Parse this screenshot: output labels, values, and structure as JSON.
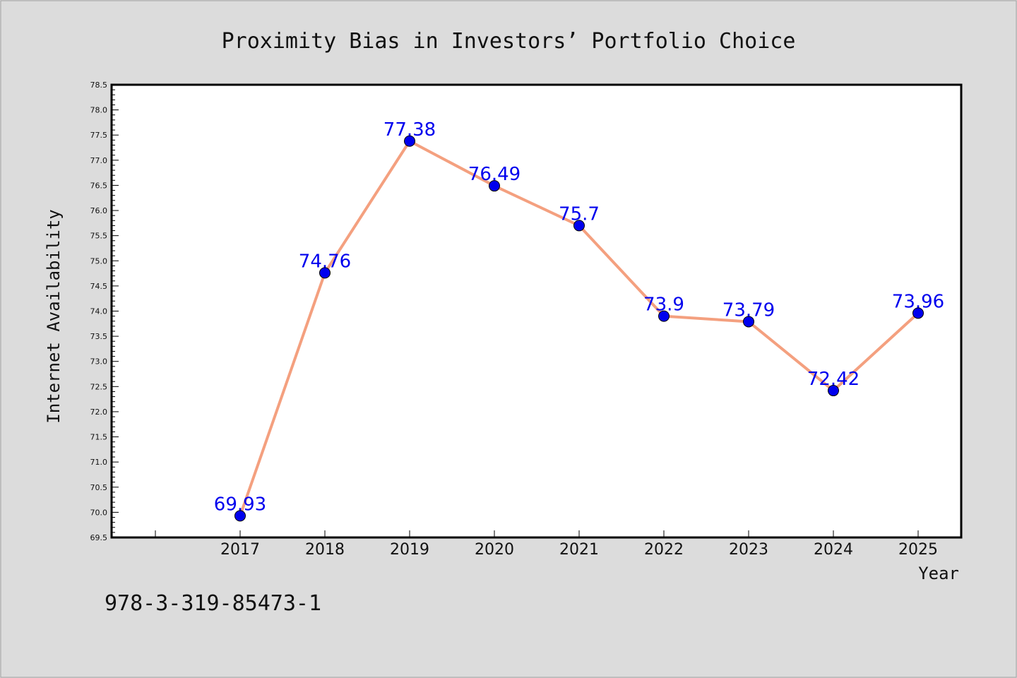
{
  "chart_data": {
    "type": "line",
    "title": "Proximity Bias in Investors’ Portfolio Choice",
    "xlabel": "Year",
    "ylabel": "Internet Availability",
    "categories": [
      "2017",
      "2018",
      "2019",
      "2020",
      "2021",
      "2022",
      "2023",
      "2024",
      "2025"
    ],
    "series": [
      {
        "values": [
          69.93,
          74.76,
          77.38,
          76.49,
          75.7,
          73.9,
          73.79,
          72.42,
          73.96
        ],
        "data_labels": [
          "69.93",
          "74.76",
          "77.38",
          "76.49",
          "75.7",
          "73.9",
          "73.79",
          "72.42",
          "73.96"
        ]
      }
    ],
    "ylim": [
      69.5,
      78.5
    ],
    "yticks": [
      "69.5",
      "70.0",
      "70.5",
      "71.0",
      "71.5",
      "72.0",
      "72.5",
      "73.0",
      "73.5",
      "74.0",
      "74.5",
      "75.0",
      "75.5",
      "76.0",
      "76.5",
      "77.0",
      "77.5",
      "78.0",
      "78.5"
    ],
    "grid": false,
    "legend": "none",
    "colors": {
      "line": "#f4a07f",
      "marker": "#0000ee",
      "data_label": "#0000ee",
      "background": "#dcdcdc",
      "plot_background": "#ffffff"
    }
  },
  "footnote": "978-3-319-85473-1"
}
